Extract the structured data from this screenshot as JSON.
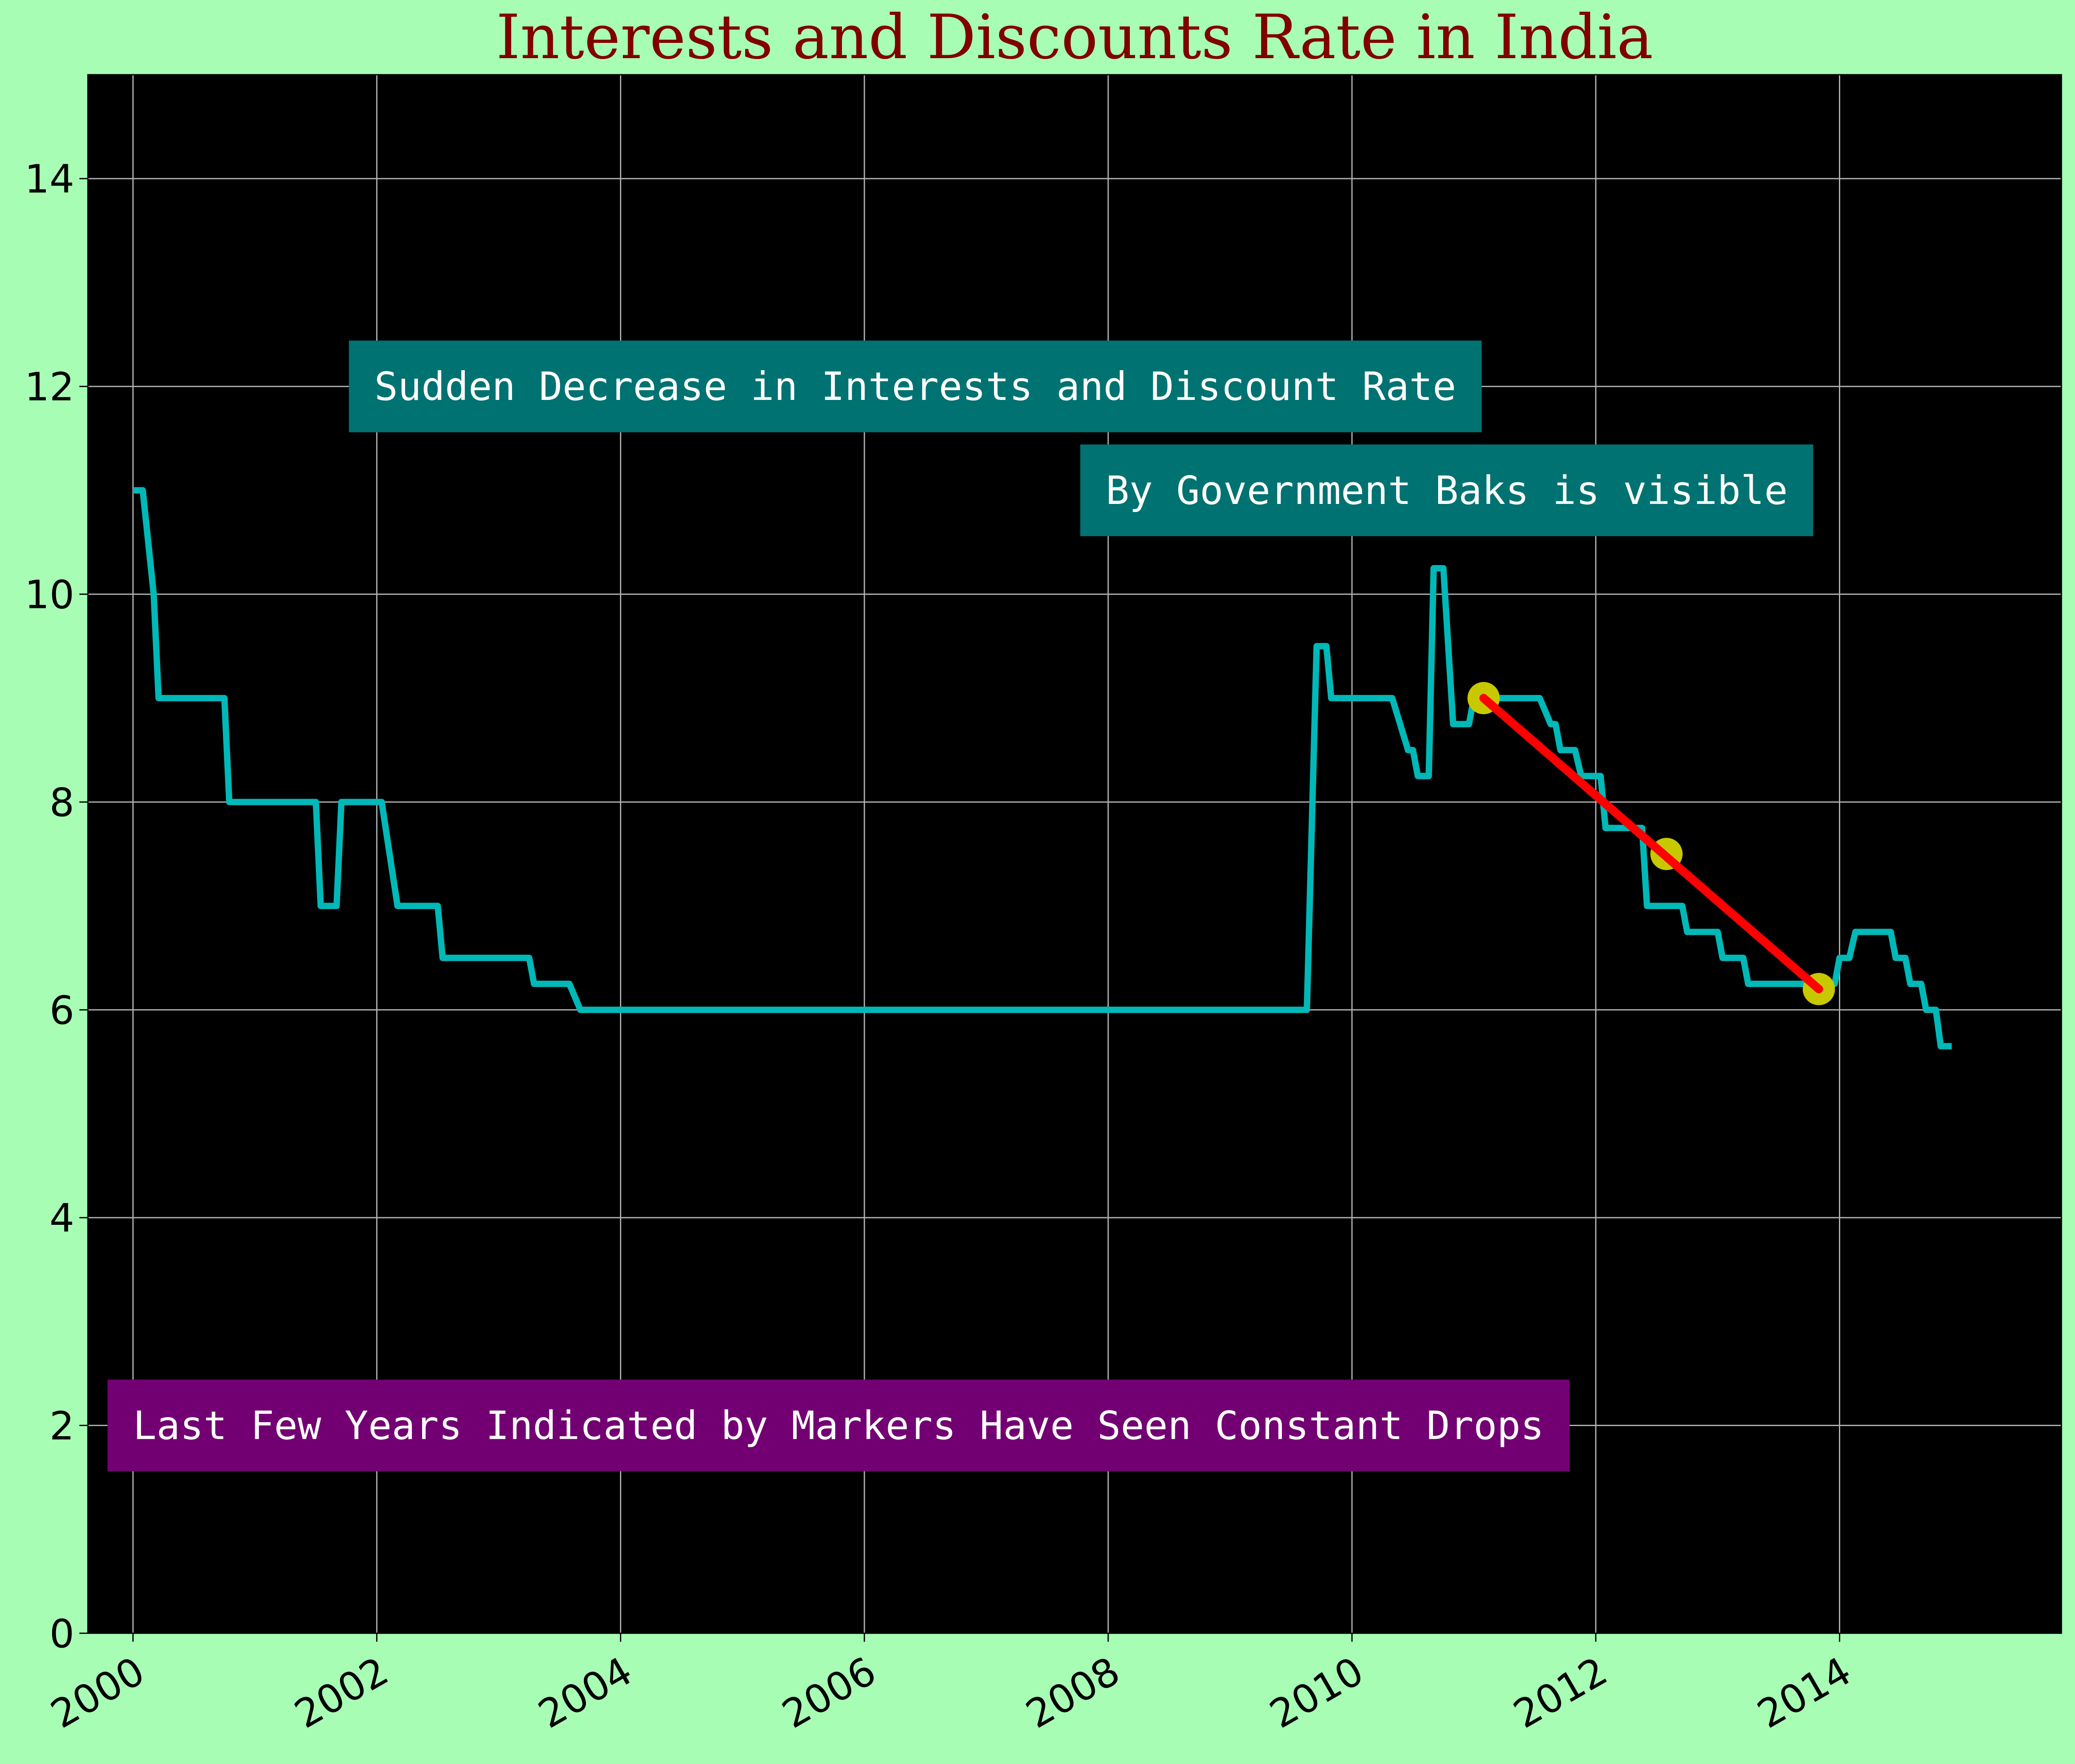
{
  "chart_data": {
    "type": "line",
    "title": "Interests and Discounts Rate in India",
    "xlabel": "",
    "ylabel": "",
    "xlim": [
      1999.63,
      2015.82
    ],
    "ylim": [
      0,
      15
    ],
    "xticks": [
      2000,
      2002,
      2004,
      2006,
      2008,
      2010,
      2012,
      2014
    ],
    "xtick_labels": [
      "2000",
      "2002",
      "2004",
      "2006",
      "2008",
      "2010",
      "2012",
      "2014"
    ],
    "yticks": [
      0,
      2,
      4,
      6,
      8,
      10,
      12,
      14
    ],
    "ytick_labels": [
      "0",
      "2",
      "4",
      "6",
      "8",
      "10",
      "12",
      "14"
    ],
    "grid": true,
    "colors": {
      "figure_background": "#a7fdb4",
      "plot_background": "#000000",
      "line": "#00b8b8",
      "trend_line": "#ff0000",
      "marker": "#c8c800",
      "title": "#800000",
      "grid": "#b0b0b0",
      "teal_box": "#007272",
      "purple_box": "#730073"
    },
    "series": [
      {
        "name": "",
        "points": [
          [
            2000.0,
            11.0
          ],
          [
            2000.08,
            11.0
          ],
          [
            2000.17,
            10.0
          ],
          [
            2000.21,
            9.0
          ],
          [
            2000.75,
            9.0
          ],
          [
            2000.79,
            8.0
          ],
          [
            2001.5,
            8.0
          ],
          [
            2001.54,
            7.0
          ],
          [
            2001.67,
            7.0
          ],
          [
            2001.71,
            8.0
          ],
          [
            2002.04,
            8.0
          ],
          [
            2002.17,
            7.0
          ],
          [
            2002.5,
            7.0
          ],
          [
            2002.54,
            6.5
          ],
          [
            2003.25,
            6.5
          ],
          [
            2003.29,
            6.25
          ],
          [
            2003.58,
            6.25
          ],
          [
            2003.67,
            6.0
          ],
          [
            2009.63,
            6.0
          ],
          [
            2009.71,
            9.5
          ],
          [
            2009.79,
            9.5
          ],
          [
            2009.83,
            9.0
          ],
          [
            2010.33,
            9.0
          ],
          [
            2010.46,
            8.5
          ],
          [
            2010.5,
            8.5
          ],
          [
            2010.54,
            8.25
          ],
          [
            2010.63,
            8.25
          ],
          [
            2010.67,
            10.25
          ],
          [
            2010.75,
            10.25
          ],
          [
            2010.83,
            8.75
          ],
          [
            2010.96,
            8.75
          ],
          [
            2011.0,
            9.0
          ],
          [
            2011.54,
            9.0
          ],
          [
            2011.63,
            8.75
          ],
          [
            2011.67,
            8.75
          ],
          [
            2011.71,
            8.5
          ],
          [
            2011.83,
            8.5
          ],
          [
            2011.88,
            8.25
          ],
          [
            2012.04,
            8.25
          ],
          [
            2012.08,
            7.75
          ],
          [
            2012.38,
            7.75
          ],
          [
            2012.42,
            7.0
          ],
          [
            2012.71,
            7.0
          ],
          [
            2012.75,
            6.75
          ],
          [
            2013.0,
            6.75
          ],
          [
            2013.04,
            6.5
          ],
          [
            2013.21,
            6.5
          ],
          [
            2013.25,
            6.25
          ],
          [
            2013.96,
            6.25
          ],
          [
            2014.0,
            6.5
          ],
          [
            2014.08,
            6.5
          ],
          [
            2014.13,
            6.75
          ],
          [
            2014.42,
            6.75
          ],
          [
            2014.46,
            6.5
          ],
          [
            2014.54,
            6.5
          ],
          [
            2014.58,
            6.25
          ],
          [
            2014.67,
            6.25
          ],
          [
            2014.71,
            6.0
          ],
          [
            2014.79,
            6.0
          ],
          [
            2014.83,
            5.65
          ],
          [
            2014.92,
            5.65
          ]
        ]
      }
    ],
    "markers": [
      {
        "x": 2011.08,
        "y": 9.0
      },
      {
        "x": 2012.58,
        "y": 7.5
      },
      {
        "x": 2013.83,
        "y": 6.2
      }
    ],
    "trend_line": [
      [
        2011.08,
        9.0
      ],
      [
        2013.83,
        6.2
      ]
    ],
    "annotations": [
      {
        "text": "Sudden Decrease in Interests and Discount Rate",
        "x": 2001.98,
        "y": 12.0,
        "box": "teal"
      },
      {
        "text": "By Government Baks is visible",
        "x": 2007.98,
        "y": 11.0,
        "box": "teal"
      },
      {
        "text": "Last Few Years Indicated by Markers Have Seen Constant Drops",
        "x": 2000.0,
        "y": 2.0,
        "box": "purple"
      }
    ]
  }
}
